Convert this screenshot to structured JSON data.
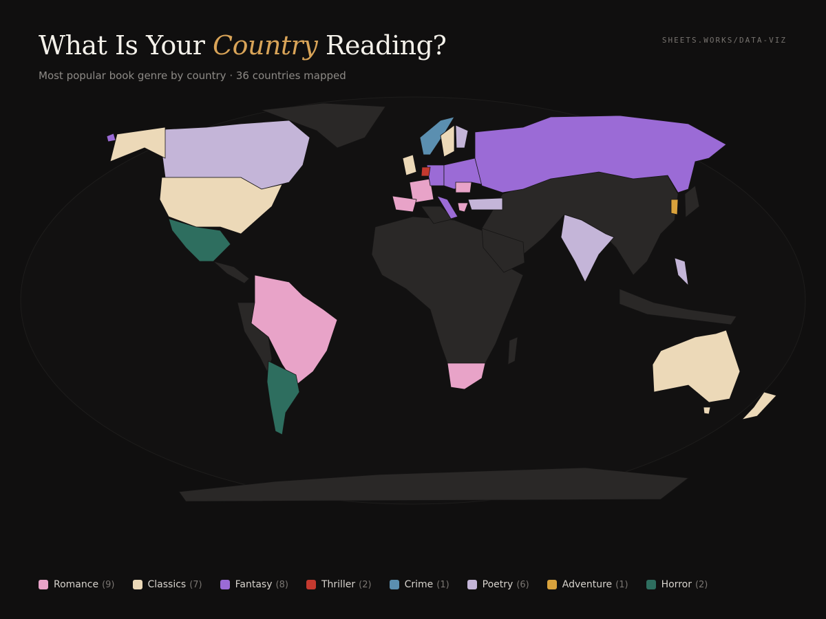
{
  "header": {
    "title_parts": [
      "What Is Your ",
      "Country",
      " Reading?"
    ],
    "subtitle": "Most popular book genre by country · 36 countries mapped",
    "source": "SHEETS.WORKS/DATA-VIZ"
  },
  "legend": [
    {
      "name": "Romance",
      "count": "(9)",
      "color": "#e8a3c8"
    },
    {
      "name": "Classics",
      "count": "(7)",
      "color": "#ecd9b8"
    },
    {
      "name": "Fantasy",
      "count": "(8)",
      "color": "#9b6bd6"
    },
    {
      "name": "Thriller",
      "count": "(2)",
      "color": "#c4392f"
    },
    {
      "name": "Crime",
      "count": "(1)",
      "color": "#5b8fb0"
    },
    {
      "name": "Poetry",
      "count": "(6)",
      "color": "#c4b5d8"
    },
    {
      "name": "Adventure",
      "count": "(1)",
      "color": "#d9a23c"
    },
    {
      "name": "Horror",
      "count": "(2)",
      "color": "#2e6e5f"
    }
  ]
}
